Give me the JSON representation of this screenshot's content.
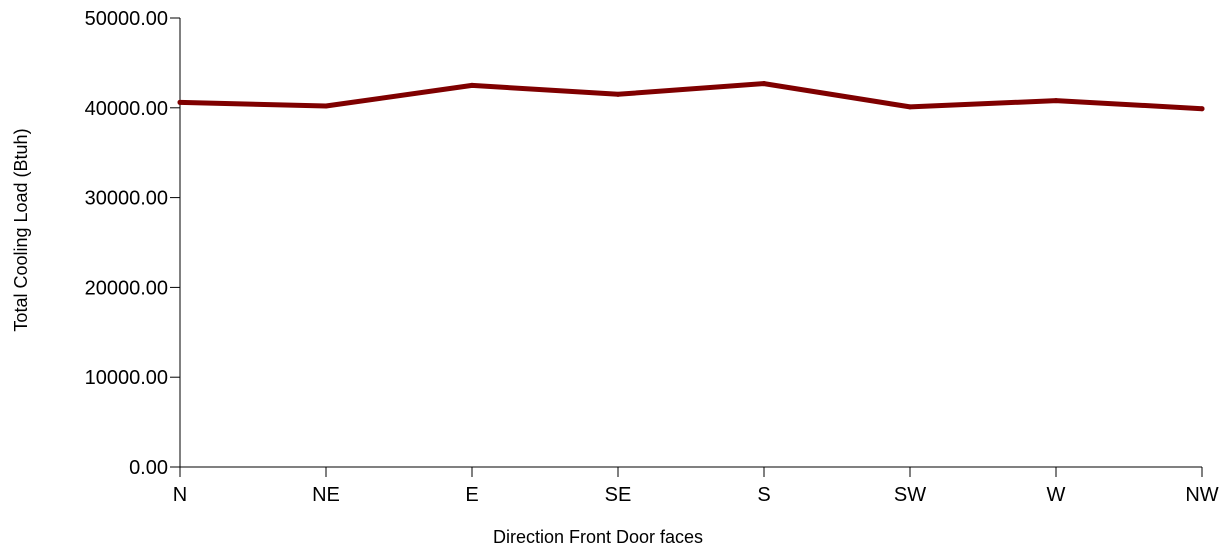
{
  "chart_data": {
    "type": "line",
    "title": "",
    "xlabel": "Direction Front Door faces",
    "ylabel": "Total Cooling Load (Btuh)",
    "categories": [
      "N",
      "NE",
      "E",
      "SE",
      "S",
      "SW",
      "W",
      "NW"
    ],
    "yticks": [
      "0.00",
      "10000.00",
      "20000.00",
      "30000.00",
      "40000.00",
      "50000.00"
    ],
    "ylim": [
      0,
      50000
    ],
    "grid": false,
    "legend": "none",
    "series": [
      {
        "values": [
          40600,
          40200,
          42500,
          41500,
          42700,
          40100,
          40800,
          39900
        ],
        "color": "#7f0000"
      }
    ]
  }
}
